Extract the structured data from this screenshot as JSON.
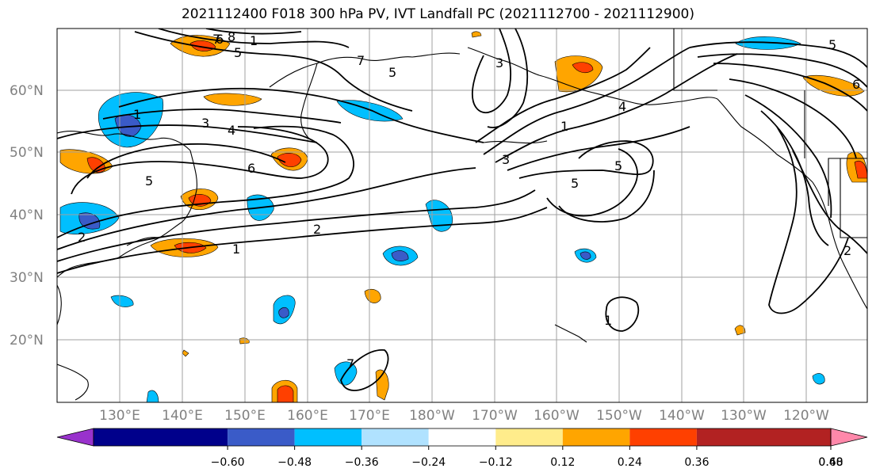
{
  "title": "2021112400 F018 300 hPa PV, IVT Landfall PC (2021112700 - 2021112900)",
  "lat_labels": [
    "60°N",
    "50°N",
    "40°N",
    "30°N",
    "20°N"
  ],
  "lon_labels": [
    "130°E",
    "140°E",
    "150°E",
    "160°E",
    "170°E",
    "180°W",
    "170°W",
    "160°W",
    "150°W",
    "140°W",
    "130°W",
    "120°W"
  ],
  "contour_labels": [
    "8",
    "7",
    "6",
    "5",
    "4",
    "3",
    "2",
    "1",
    "1",
    "4",
    "5",
    "2",
    "1",
    "3",
    "5",
    "7",
    "6",
    "5",
    "5",
    "1",
    "7",
    "5",
    "2",
    "1",
    "3",
    "6"
  ],
  "colorbar": {
    "colors": [
      "#9932cc",
      "#00008b",
      "#3a5bc8",
      "#00bfff",
      "#b0e2ff",
      "#ffffff",
      "#ffec8b",
      "#ffa500",
      "#ff4000",
      "#b22222",
      "#ff88aa"
    ],
    "ticks": [
      "−0.60",
      "−0.48",
      "−0.36",
      "−0.24",
      "−0.12",
      "0.12",
      "0.24",
      "0.36",
      "0.48",
      "0.60"
    ]
  },
  "colors": {
    "grid": "#a0a0a0",
    "contour": "#000000",
    "tick_label": "#808080"
  }
}
